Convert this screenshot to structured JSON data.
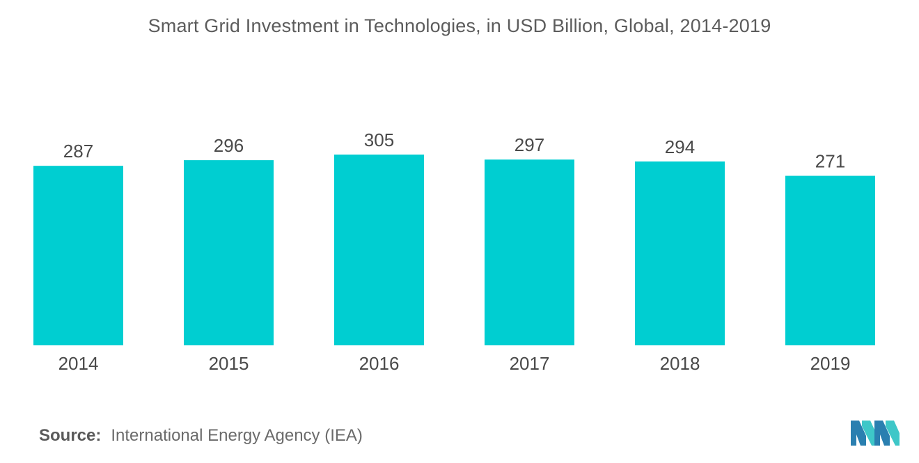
{
  "chart_data": {
    "type": "bar",
    "title": "Smart Grid Investment in Technologies, in USD Billion, Global, 2014-2019",
    "categories": [
      "2014",
      "2015",
      "2016",
      "2017",
      "2018",
      "2019"
    ],
    "values": [
      287,
      296,
      305,
      297,
      294,
      271
    ],
    "data_labels": [
      "287",
      "296",
      "305",
      "297",
      "294",
      "271"
    ],
    "xlabel": "",
    "ylabel": "",
    "ylim": [
      0,
      305
    ],
    "grid": false,
    "legend": "none",
    "bar_color": "#00CED1"
  },
  "source": {
    "label": "Source:",
    "text": "International Energy Agency (IEA)"
  },
  "logo": {
    "icon": "mordor-intelligence-logo-icon",
    "colors": [
      "#2a7fb0",
      "#3ec7c8"
    ]
  }
}
